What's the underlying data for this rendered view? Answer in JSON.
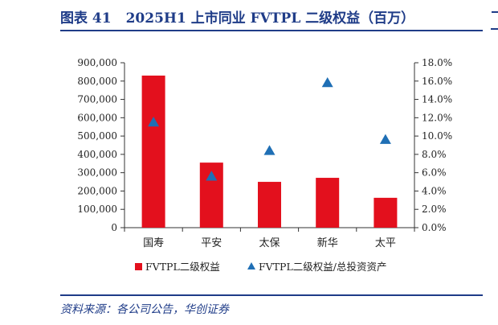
{
  "header": {
    "figure_label": "图表 41",
    "title": "2025H1 上市同业 FVTPL 二级权益（百万）"
  },
  "footer": {
    "source": "资料来源：各公司公告，华创证券"
  },
  "colors": {
    "accent": "#1f3c88",
    "bar": "#e3101d",
    "marker": "#1f6fb5",
    "axis": "#333333"
  },
  "chart_data": {
    "type": "bar",
    "categories": [
      "国寿",
      "平安",
      "太保",
      "新华",
      "太平"
    ],
    "series": [
      {
        "name": "FVTPL二级权益",
        "kind": "bar",
        "axis": "left",
        "values": [
          830000,
          355000,
          250000,
          272000,
          163000
        ]
      },
      {
        "name": "FVTPL二级权益/总投资资产",
        "kind": "scatter",
        "marker": "triangle",
        "axis": "right",
        "values": [
          11.5,
          5.6,
          8.4,
          15.8,
          9.6
        ]
      }
    ],
    "y_left": {
      "min": 0,
      "max": 900000,
      "step": 100000,
      "ticks": [
        "0",
        "100,000",
        "200,000",
        "300,000",
        "400,000",
        "500,000",
        "600,000",
        "700,000",
        "800,000",
        "900,000"
      ]
    },
    "y_right": {
      "min": 0,
      "max": 18,
      "step": 2,
      "ticks": [
        "0.0%",
        "2.0%",
        "4.0%",
        "6.0%",
        "8.0%",
        "10.0%",
        "12.0%",
        "14.0%",
        "16.0%",
        "18.0%"
      ]
    },
    "grid": false,
    "legend_position": "bottom"
  }
}
